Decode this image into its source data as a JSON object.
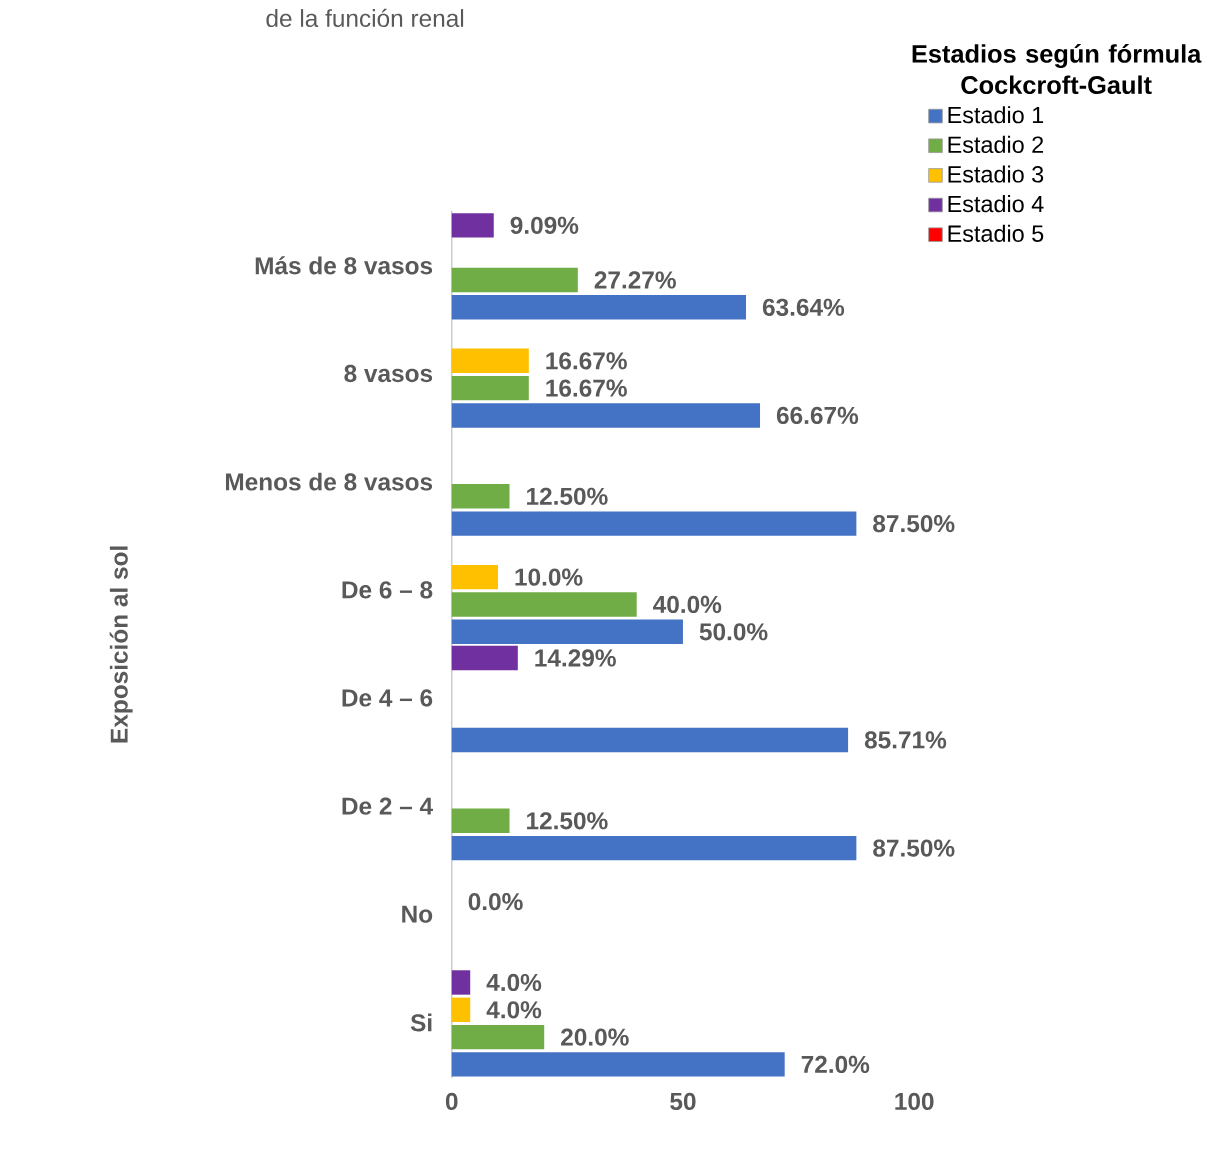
{
  "chart_data": {
    "type": "bar",
    "orientation": "horizontal",
    "title": "de la función renal",
    "ylabel": "Exposición al sol",
    "legend_title": "Estadios según fórmula Cockcroft-Gault",
    "legend": "top right",
    "categories": [
      "Más de 8 vasos",
      "8 vasos",
      "Menos de 8 vasos",
      "De 6 – 8",
      "De 4 – 6",
      "De 2 – 4",
      "No",
      "Si"
    ],
    "xlim": [
      0,
      100
    ],
    "xticks": [
      0,
      50,
      100
    ],
    "series": [
      {
        "name": "Estadio 1",
        "color": "#4472c4",
        "values": [
          63.64,
          66.67,
          87.5,
          50.0,
          85.71,
          87.5,
          null,
          72.0
        ],
        "value_labels": [
          "63.64%",
          "66.67%",
          "87.50%",
          "50.0%",
          "85.71%",
          "87.50%",
          null,
          "72.0%"
        ]
      },
      {
        "name": "Estadio 2",
        "color": "#70ad47",
        "values": [
          27.27,
          16.67,
          12.5,
          40.0,
          null,
          12.5,
          null,
          20.0
        ],
        "value_labels": [
          "27.27%",
          "16.67%",
          "12.50%",
          "40.0%",
          null,
          "12.50%",
          null,
          "20.0%"
        ]
      },
      {
        "name": "Estadio 3",
        "color": "#ffc000",
        "values": [
          null,
          16.67,
          null,
          10.0,
          null,
          null,
          0.0,
          4.0
        ],
        "value_labels": [
          null,
          "16.67%",
          null,
          "10.0%",
          null,
          null,
          "0.0%",
          "4.0%"
        ]
      },
      {
        "name": "Estadio 4",
        "color": "#7030a0",
        "values": [
          9.09,
          null,
          null,
          null,
          14.29,
          null,
          null,
          4.0
        ],
        "value_labels": [
          "9.09%",
          null,
          null,
          null,
          "14.29%",
          null,
          null,
          "4.0%"
        ]
      },
      {
        "name": "Estadio 5",
        "color": "#ff0000",
        "values": [
          null,
          null,
          null,
          null,
          null,
          null,
          null,
          null
        ]
      }
    ]
  }
}
